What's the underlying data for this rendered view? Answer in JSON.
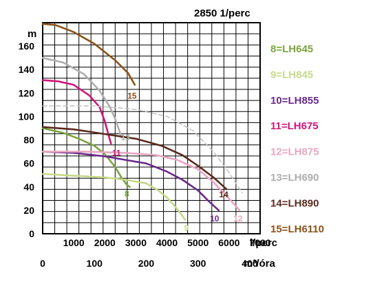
{
  "chart_data": {
    "type": "line",
    "title": "2850 1/perc",
    "ylabel": "m",
    "ylim": [
      0,
      180
    ],
    "yticks": [
      "0",
      "20",
      "40",
      "60",
      "80",
      "100",
      "120",
      "140",
      "160"
    ],
    "xlabel_primary": "l/perc",
    "xticks_primary": [
      "1000",
      "2000",
      "3000",
      "4000",
      "5000",
      "6000",
      "7000"
    ],
    "xlabel_secondary": "m³/óra",
    "xticks_secondary": [
      "0",
      "100",
      "200",
      "300",
      "400"
    ],
    "xlim": [
      0,
      420
    ],
    "grid": true,
    "legend_position": "right",
    "series": [
      {
        "name": "8=LH645",
        "label": "8",
        "color": "#7aa43c",
        "x": [
          0,
          40,
          70,
          100,
          120,
          140,
          152,
          162,
          168
        ],
        "y": [
          90,
          86,
          81,
          75,
          68,
          57,
          48,
          42,
          40
        ]
      },
      {
        "name": "9=LH845",
        "label": "9",
        "color": "#c6d88a",
        "x": [
          0,
          40,
          80,
          120,
          160,
          200,
          220,
          240,
          262,
          275
        ],
        "y": [
          51,
          50,
          49,
          48,
          46,
          43,
          38,
          31,
          20,
          12
        ]
      },
      {
        "name": "10=LH855",
        "label": "10",
        "color": "#6a2a8a",
        "x": [
          0,
          60,
          120,
          160,
          200,
          240,
          270,
          300,
          320,
          340
        ],
        "y": [
          70,
          69,
          66,
          63,
          60,
          53,
          46,
          37,
          28,
          20
        ]
      },
      {
        "name": "11=LH675",
        "label": "11",
        "color": "#d0157a",
        "x": [
          0,
          30,
          60,
          90,
          110,
          120,
          128,
          132
        ],
        "y": [
          131,
          130,
          127,
          118,
          108,
          96,
          83,
          77
        ]
      },
      {
        "name": "12=LH875",
        "label": "12",
        "color": "#e8a6c0",
        "x": [
          0,
          80,
          160,
          220,
          260,
          300,
          330,
          360,
          380
        ],
        "y": [
          70,
          70,
          69,
          67,
          63,
          55,
          44,
          30,
          20
        ]
      },
      {
        "name": "13=LH690",
        "label": "13",
        "color": "#aeaeae",
        "x": [
          0,
          40,
          80,
          110,
          130,
          140,
          148,
          152
        ],
        "y": [
          150,
          146,
          136,
          122,
          108,
          98,
          88,
          82
        ]
      },
      {
        "name": "13=LH690 (2)",
        "legend": false,
        "color": "#c0c0c0",
        "dashed": true,
        "x": [
          0,
          100,
          180,
          240,
          290,
          330,
          360,
          378,
          385
        ],
        "y": [
          109,
          109,
          106,
          100,
          88,
          70,
          52,
          40,
          35
        ]
      },
      {
        "name": "14=LH890",
        "label": "14",
        "color": "#5a2a1e",
        "x": [
          0,
          60,
          120,
          180,
          230,
          270,
          300,
          330,
          355
        ],
        "y": [
          91,
          89,
          85,
          81,
          75,
          67,
          58,
          48,
          38
        ]
      },
      {
        "name": "15=LH6110",
        "label": "15",
        "color": "#8a5218",
        "x": [
          0,
          25,
          60,
          100,
          140,
          165,
          178
        ],
        "y": [
          179,
          178,
          172,
          162,
          148,
          137,
          127
        ]
      }
    ]
  }
}
